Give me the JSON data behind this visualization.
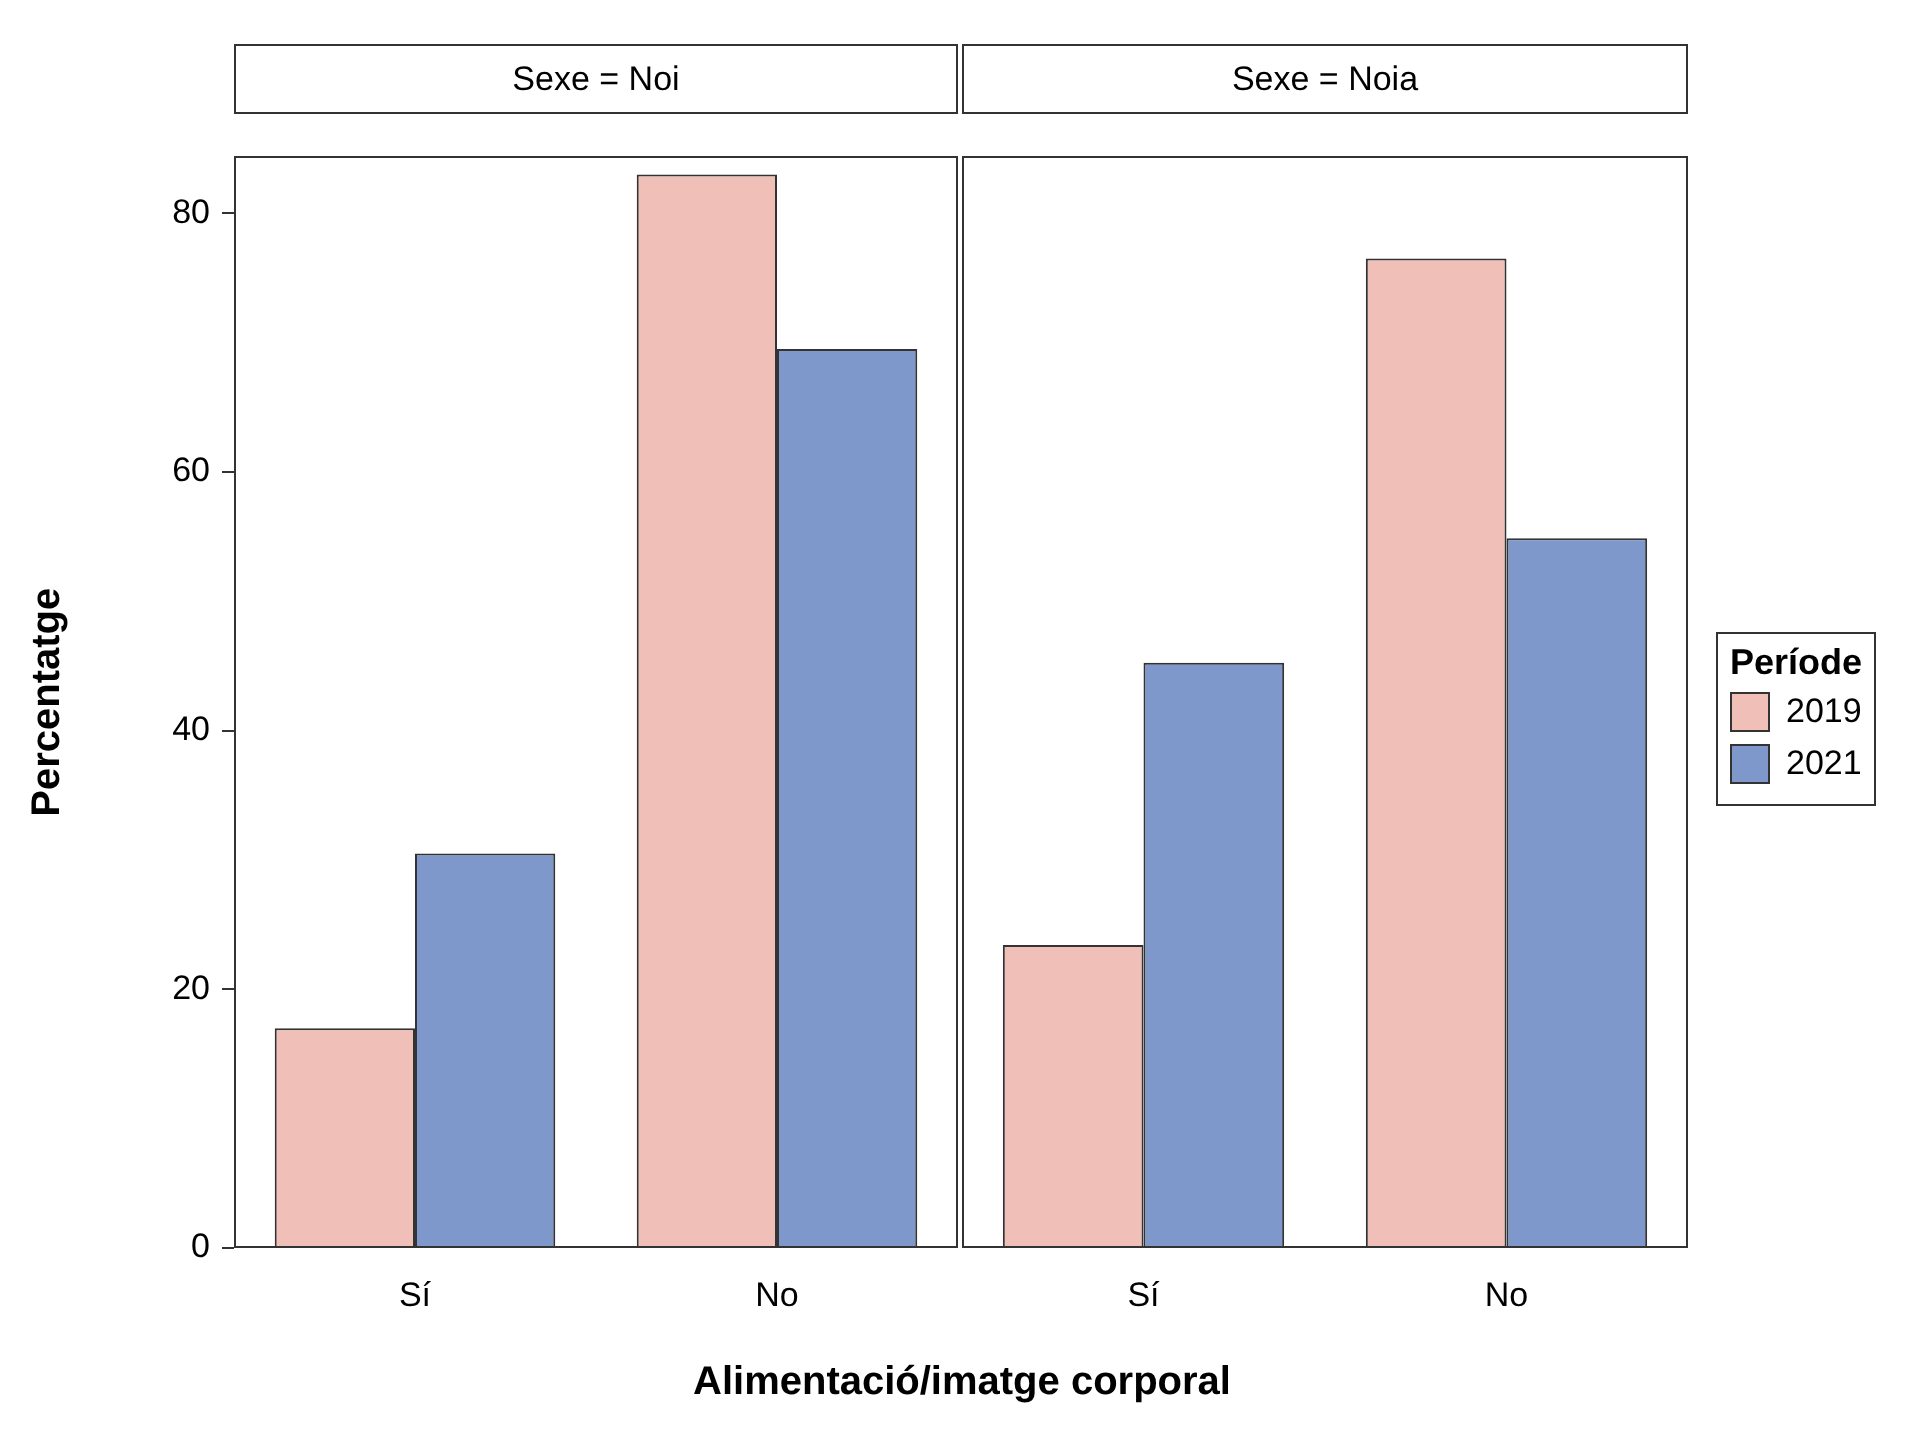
{
  "chart_data": [
    {
      "type": "bar",
      "title": "Sexe = Noi",
      "ylabel": "Percentatge",
      "xlabel": "Alimentació/imatge corporal",
      "categories": [
        "Sí",
        "No"
      ],
      "ylim": [
        0,
        84.4
      ],
      "yticks": [
        0,
        20,
        40,
        60,
        80
      ],
      "grid": false,
      "legend": false,
      "series": [
        {
          "color": "#f0c0b8",
          "values": [
            17.0,
            83.0
          ]
        },
        {
          "color": "#7f98cc",
          "values": [
            30.5,
            69.5
          ]
        }
      ]
    },
    {
      "type": "bar",
      "title": "Sexe = Noia",
      "categories": [
        "Sí",
        "No"
      ],
      "ylim": [
        0,
        84.4
      ],
      "yticks": [
        0,
        20,
        40,
        60,
        80
      ],
      "tick_labels": "x",
      "grid": false,
      "legend": "right",
      "legend_title": "Període",
      "series": [
        {
          "name": "2019",
          "color": "#f0c0b8",
          "values": [
            23.4,
            76.4
          ]
        },
        {
          "name": "2021",
          "color": "#7f98cc",
          "values": [
            45.2,
            54.8
          ]
        }
      ]
    }
  ]
}
